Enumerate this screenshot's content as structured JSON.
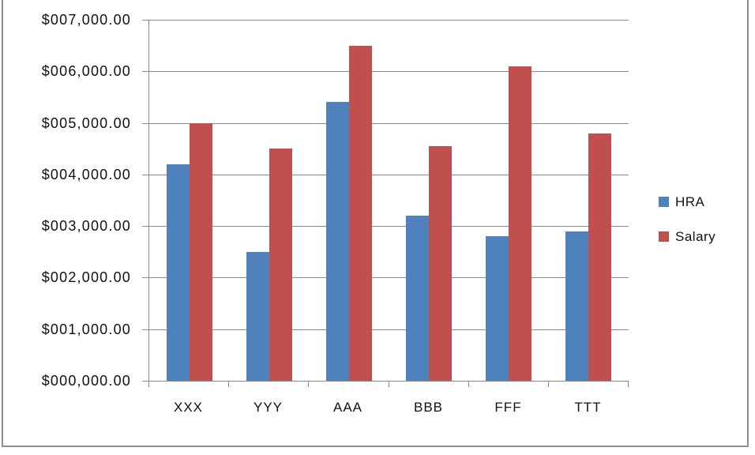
{
  "chart_data": {
    "type": "bar",
    "title": "",
    "categories": [
      "XXX",
      "YYY",
      "AAA",
      "BBB",
      "FFF",
      "TTT"
    ],
    "series": [
      {
        "name": "HRA",
        "color": "#4F81BD",
        "values": [
          4200,
          2500,
          5400,
          3200,
          2800,
          2900
        ]
      },
      {
        "name": "Salary",
        "color": "#C0504D",
        "values": [
          5000,
          4500,
          6500,
          4550,
          6100,
          4800
        ]
      }
    ],
    "y_axis": {
      "min": 0,
      "max": 7000,
      "step": 1000,
      "tick_labels": [
        "$000,000.00",
        "$001,000.00",
        "$002,000.00",
        "$003,000.00",
        "$004,000.00",
        "$005,000.00",
        "$006,000.00",
        "$007,000.00"
      ]
    },
    "xlabel": "",
    "ylabel": "",
    "grid": true,
    "legend_position": "right",
    "colors": {
      "gridline": "#8A8A8A",
      "axis": "#8A8A8A",
      "frame_border": "#8E8E8E",
      "text": "#111111",
      "background": "#FFFFFF"
    }
  }
}
